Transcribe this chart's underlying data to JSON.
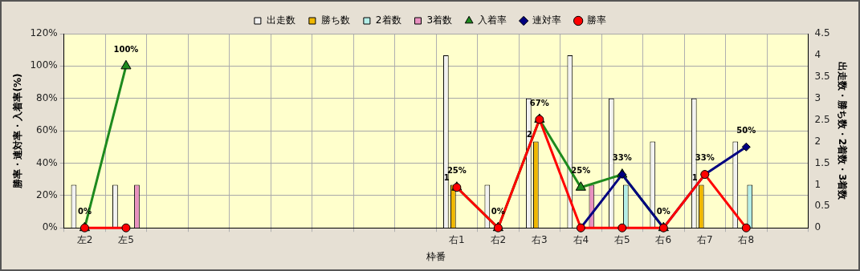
{
  "chart_data": {
    "type": "bar",
    "xlabel": "枠番",
    "ylabel": "勝率・連対率・入着率(%)",
    "y2label": "出走数・勝ち数・2着数・3着数",
    "categories": [
      "左2",
      "左5",
      null,
      null,
      null,
      null,
      null,
      null,
      null,
      "右1",
      "右2",
      "右3",
      "右4",
      "右5",
      "右6",
      "右7",
      "右8",
      null
    ],
    "series": [
      {
        "name": "出走数",
        "axis": "y2",
        "color": "#f2f2f2",
        "values": [
          1,
          1,
          null,
          null,
          null,
          null,
          null,
          null,
          null,
          4,
          1,
          3,
          4,
          3,
          2,
          3,
          2,
          null
        ]
      },
      {
        "name": "勝ち数",
        "axis": "y2",
        "color": "#f0b800",
        "values": [
          null,
          null,
          null,
          null,
          null,
          null,
          null,
          null,
          null,
          1,
          null,
          2,
          null,
          null,
          null,
          1,
          null,
          null
        ],
        "value_labels": [
          null,
          null,
          null,
          null,
          null,
          null,
          null,
          null,
          null,
          "1",
          null,
          "2",
          null,
          null,
          null,
          "1",
          null,
          null
        ]
      },
      {
        "name": "2着数",
        "axis": "y2",
        "color": "#b4eee8",
        "values": [
          null,
          null,
          null,
          null,
          null,
          null,
          null,
          null,
          null,
          null,
          null,
          null,
          null,
          1,
          null,
          null,
          1,
          null
        ]
      },
      {
        "name": "3着数",
        "axis": "y2",
        "color": "#e890c0",
        "values": [
          null,
          1,
          null,
          null,
          null,
          null,
          null,
          null,
          null,
          null,
          null,
          null,
          1,
          null,
          null,
          null,
          null,
          null
        ]
      },
      {
        "name": "入着率",
        "type": "line",
        "color": "#1e8a1e",
        "marker": "triangle",
        "values": [
          0,
          100,
          null,
          null,
          null,
          null,
          null,
          null,
          null,
          25,
          0,
          67,
          25,
          33,
          0,
          null,
          null,
          null
        ],
        "value_labels": [
          "0%",
          "100%",
          null,
          null,
          null,
          null,
          null,
          null,
          null,
          "25%",
          "0%",
          "67%",
          "25%",
          "33%",
          "0%",
          null,
          null,
          null
        ]
      },
      {
        "name": "連対率",
        "type": "line",
        "color": "#000080",
        "marker": "diamond",
        "values": [
          null,
          null,
          null,
          null,
          null,
          null,
          null,
          null,
          null,
          null,
          null,
          null,
          0,
          33,
          0,
          33,
          50,
          null
        ],
        "value_labels": [
          null,
          null,
          null,
          null,
          null,
          null,
          null,
          null,
          null,
          null,
          null,
          null,
          null,
          null,
          null,
          "33%",
          "50%",
          null
        ]
      },
      {
        "name": "勝率",
        "type": "line",
        "color": "#ff0000",
        "marker": "circle",
        "values": [
          0,
          0,
          null,
          null,
          null,
          null,
          null,
          null,
          null,
          25,
          0,
          67,
          0,
          0,
          0,
          33,
          0,
          null
        ]
      }
    ],
    "ylim": [
      0,
      120
    ],
    "yticks": [
      {
        "value": 0,
        "label": "0%"
      },
      {
        "value": 20,
        "label": "20%"
      },
      {
        "value": 40,
        "label": "40%"
      },
      {
        "value": 60,
        "label": "60%"
      },
      {
        "value": 80,
        "label": "80%"
      },
      {
        "value": 100,
        "label": "100%"
      },
      {
        "value": 120,
        "label": "120%"
      }
    ],
    "y2lim": [
      0,
      4.5
    ],
    "y2ticks": [
      0,
      0.5,
      1,
      1.5,
      2,
      2.5,
      3,
      3.5,
      4,
      4.5
    ],
    "grid": true,
    "legend": "top",
    "line_style": "solid"
  }
}
